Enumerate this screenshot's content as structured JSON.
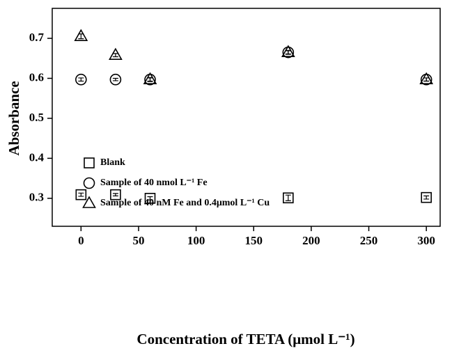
{
  "chart_data": {
    "type": "scatter",
    "x_label": "Concentration of TETA (μmol L⁻¹)",
    "y_label": "Absorbance",
    "xlim": [
      -25,
      312
    ],
    "xticks": [
      0,
      50,
      100,
      150,
      200,
      250,
      300
    ],
    "ylim": [
      0.23,
      0.775
    ],
    "yticks": [
      0.3,
      0.4,
      0.5,
      0.6,
      0.7
    ],
    "legend": "left",
    "series": [
      {
        "name": "Blank",
        "color": "#000000",
        "marker": "square",
        "x": [
          0,
          30,
          60,
          180,
          300
        ],
        "values": [
          0.309,
          0.309,
          0.3,
          0.301,
          0.302
        ],
        "errors": [
          0.004,
          0.003,
          0.004,
          0.007,
          0.004
        ]
      },
      {
        "name": "Sample of 40 nmol L⁻¹ Fe",
        "color": "#000000",
        "marker": "circle",
        "x": [
          0,
          30,
          60,
          180,
          300
        ],
        "values": [
          0.597,
          0.597,
          0.597,
          0.665,
          0.597
        ],
        "errors": [
          0.004,
          0.003,
          0.004,
          0.004,
          0.004
        ]
      },
      {
        "name": "Sample of 40 nM Fe and 0.4μmol L⁻¹ Cu",
        "color": "#000000",
        "marker": "triangle",
        "x": [
          0,
          30,
          60,
          180,
          300
        ],
        "values": [
          0.705,
          0.658,
          0.597,
          0.665,
          0.597
        ],
        "errors": [
          0.006,
          0.004,
          0.005,
          0.005,
          0.004
        ]
      }
    ]
  }
}
